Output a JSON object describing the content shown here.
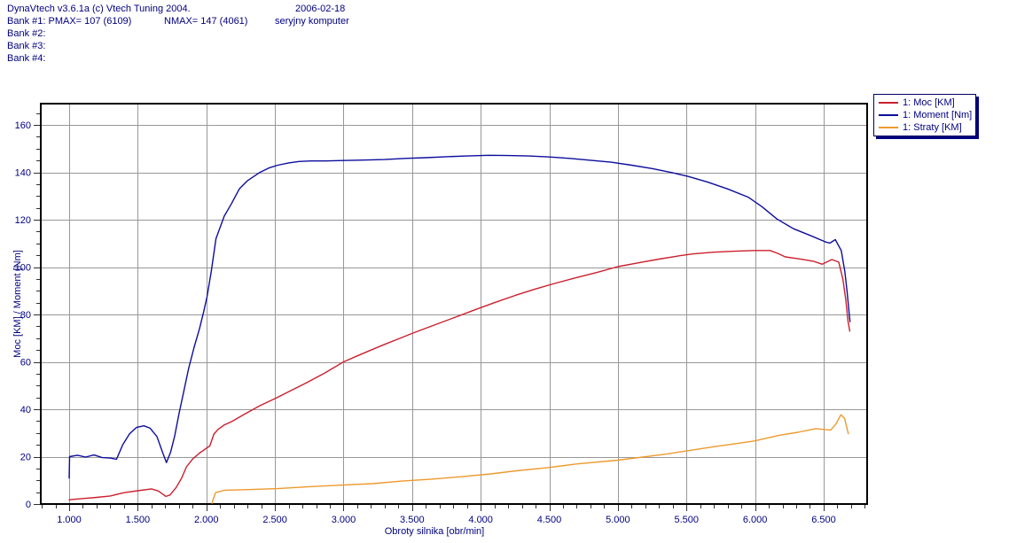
{
  "header": {
    "title": "DynaVtech v3.6.1a (c) Vtech Tuning 2004.",
    "date": "2006-02-18",
    "bank1_pmax": "Bank #1: PMAX= 107 (6109)",
    "bank1_nmax": "NMAX= 147 (4061)",
    "bank1_note": "seryjny komputer",
    "bank2": "Bank #2:",
    "bank3": "Bank #3:",
    "bank4": "Bank #4:"
  },
  "colors": {
    "text": "#000080",
    "grid": "#989898",
    "frame": "#000000",
    "tick": "#303030",
    "legend_border": "#000060",
    "legend_shadow": "#000080"
  },
  "chart_data": {
    "type": "line",
    "title": "",
    "xlabel": "Obroty silnika [obr/min]",
    "ylabel": "Moc [KM] / Moment [Nm]",
    "xlim": [
      793,
      6817
    ],
    "ylim": [
      0,
      169
    ],
    "grid": true,
    "legend_position": "top-right",
    "x_minor_step": 100,
    "y_minor_step": 5,
    "x_ticks": [
      {
        "value": 1000,
        "label": "1.000"
      },
      {
        "value": 1500,
        "label": "1.500"
      },
      {
        "value": 2000,
        "label": "2.000"
      },
      {
        "value": 2500,
        "label": "2.500"
      },
      {
        "value": 3000,
        "label": "3.000"
      },
      {
        "value": 3500,
        "label": "3.500"
      },
      {
        "value": 4000,
        "label": "4.000"
      },
      {
        "value": 4500,
        "label": "4.500"
      },
      {
        "value": 5000,
        "label": "5.000"
      },
      {
        "value": 5500,
        "label": "5.500"
      },
      {
        "value": 6000,
        "label": "6.000"
      },
      {
        "value": 6500,
        "label": "6.500"
      }
    ],
    "y_ticks": [
      {
        "value": 0,
        "label": "0"
      },
      {
        "value": 20,
        "label": "20"
      },
      {
        "value": 40,
        "label": "40"
      },
      {
        "value": 60,
        "label": "60"
      },
      {
        "value": 80,
        "label": "80"
      },
      {
        "value": 100,
        "label": "100"
      },
      {
        "value": 120,
        "label": "120"
      },
      {
        "value": 140,
        "label": "140"
      },
      {
        "value": 160,
        "label": "160"
      }
    ],
    "series": [
      {
        "id": "moc",
        "name": "1: Moc [KM]",
        "color": "#cc1f2e",
        "points": [
          [
            1000,
            1.8
          ],
          [
            1100,
            2.3
          ],
          [
            1200,
            2.8
          ],
          [
            1300,
            3.4
          ],
          [
            1400,
            4.8
          ],
          [
            1500,
            5.6
          ],
          [
            1600,
            6.4
          ],
          [
            1650,
            5.5
          ],
          [
            1705,
            3.2
          ],
          [
            1735,
            3.8
          ],
          [
            1780,
            7
          ],
          [
            1820,
            11
          ],
          [
            1855,
            15.7
          ],
          [
            1900,
            19
          ],
          [
            1950,
            21.5
          ],
          [
            2000,
            23.5
          ],
          [
            2025,
            24.5
          ],
          [
            2055,
            29.5
          ],
          [
            2085,
            31.5
          ],
          [
            2130,
            33.4
          ],
          [
            2185,
            34.8
          ],
          [
            2280,
            38
          ],
          [
            2390,
            41.5
          ],
          [
            2500,
            44.5
          ],
          [
            2620,
            48
          ],
          [
            2730,
            51.2
          ],
          [
            2860,
            55.2
          ],
          [
            3000,
            60
          ],
          [
            3100,
            62.5
          ],
          [
            3200,
            65
          ],
          [
            3300,
            67.4
          ],
          [
            3400,
            69.7
          ],
          [
            3500,
            72
          ],
          [
            3650,
            75.3
          ],
          [
            3800,
            78.5
          ],
          [
            3950,
            81.8
          ],
          [
            4100,
            85
          ],
          [
            4250,
            88
          ],
          [
            4400,
            90.8
          ],
          [
            4550,
            93.3
          ],
          [
            4700,
            95.6
          ],
          [
            4850,
            97.8
          ],
          [
            5000,
            100.2
          ],
          [
            5150,
            101.8
          ],
          [
            5300,
            103.4
          ],
          [
            5450,
            104.8
          ],
          [
            5550,
            105.6
          ],
          [
            5700,
            106.3
          ],
          [
            5850,
            106.7
          ],
          [
            6000,
            107
          ],
          [
            6109,
            107
          ],
          [
            6165,
            105.8
          ],
          [
            6220,
            104.3
          ],
          [
            6320,
            103.5
          ],
          [
            6430,
            102.4
          ],
          [
            6490,
            101.2
          ],
          [
            6560,
            103.2
          ],
          [
            6610,
            102.1
          ],
          [
            6640,
            95
          ],
          [
            6662,
            86
          ],
          [
            6677,
            77.5
          ],
          [
            6690,
            73
          ]
        ]
      },
      {
        "id": "moment",
        "name": "1: Moment [Nm]",
        "color": "#0d0d9e",
        "points": [
          [
            1000,
            11
          ],
          [
            1003,
            20
          ],
          [
            1060,
            20.6
          ],
          [
            1120,
            19.8
          ],
          [
            1180,
            20.7
          ],
          [
            1240,
            19.6
          ],
          [
            1300,
            19.4
          ],
          [
            1345,
            18.9
          ],
          [
            1390,
            25
          ],
          [
            1440,
            29.6
          ],
          [
            1490,
            32.3
          ],
          [
            1545,
            33
          ],
          [
            1590,
            32
          ],
          [
            1640,
            28.5
          ],
          [
            1680,
            22
          ],
          [
            1709,
            17.5
          ],
          [
            1740,
            22
          ],
          [
            1770,
            29
          ],
          [
            1800,
            38
          ],
          [
            1830,
            46
          ],
          [
            1870,
            57
          ],
          [
            1910,
            66
          ],
          [
            1950,
            74
          ],
          [
            1980,
            81
          ],
          [
            2005,
            87.5
          ],
          [
            2035,
            98
          ],
          [
            2070,
            112
          ],
          [
            2130,
            121.5
          ],
          [
            2185,
            127
          ],
          [
            2240,
            133
          ],
          [
            2300,
            136.5
          ],
          [
            2390,
            140
          ],
          [
            2455,
            141.8
          ],
          [
            2520,
            143
          ],
          [
            2600,
            144
          ],
          [
            2675,
            144.6
          ],
          [
            2760,
            144.8
          ],
          [
            2870,
            144.8
          ],
          [
            3000,
            145
          ],
          [
            3150,
            145.2
          ],
          [
            3300,
            145.4
          ],
          [
            3450,
            145.9
          ],
          [
            3600,
            146.2
          ],
          [
            3750,
            146.6
          ],
          [
            3900,
            146.9
          ],
          [
            4061,
            147.2
          ],
          [
            4200,
            147.1
          ],
          [
            4350,
            146.9
          ],
          [
            4500,
            146.5
          ],
          [
            4650,
            145.9
          ],
          [
            4800,
            145.1
          ],
          [
            4950,
            144.3
          ],
          [
            5100,
            143
          ],
          [
            5250,
            141.6
          ],
          [
            5400,
            139.8
          ],
          [
            5510,
            138.3
          ],
          [
            5650,
            136
          ],
          [
            5800,
            133
          ],
          [
            5950,
            129.5
          ],
          [
            6050,
            125.5
          ],
          [
            6160,
            120.3
          ],
          [
            6280,
            116.2
          ],
          [
            6400,
            113.4
          ],
          [
            6510,
            110.7
          ],
          [
            6545,
            110.1
          ],
          [
            6585,
            111.6
          ],
          [
            6628,
            107
          ],
          [
            6655,
            98
          ],
          [
            6670,
            90
          ],
          [
            6685,
            81
          ],
          [
            6692,
            77
          ]
        ]
      },
      {
        "id": "straty",
        "name": "1: Straty [KM]",
        "color": "#ed9a2e",
        "points": [
          [
            2042,
            0.3
          ],
          [
            2052,
            2.5
          ],
          [
            2069,
            4.9
          ],
          [
            2133,
            5.8
          ],
          [
            2306,
            6.1
          ],
          [
            2521,
            6.5
          ],
          [
            2780,
            7.4
          ],
          [
            2995,
            8.0
          ],
          [
            3211,
            8.6
          ],
          [
            3426,
            9.7
          ],
          [
            3642,
            10.5
          ],
          [
            3857,
            11.5
          ],
          [
            4072,
            12.7
          ],
          [
            4288,
            14.2
          ],
          [
            4482,
            15.3
          ],
          [
            4697,
            16.9
          ],
          [
            4999,
            18.5
          ],
          [
            5343,
            21.0
          ],
          [
            5667,
            23.9
          ],
          [
            5990,
            26.6
          ],
          [
            6184,
            29.1
          ],
          [
            6313,
            30.3
          ],
          [
            6443,
            31.8
          ],
          [
            6551,
            31.2
          ],
          [
            6590,
            33.8
          ],
          [
            6626,
            37.7
          ],
          [
            6652,
            36.2
          ],
          [
            6668,
            32.5
          ],
          [
            6680,
            29.7
          ]
        ]
      }
    ]
  }
}
